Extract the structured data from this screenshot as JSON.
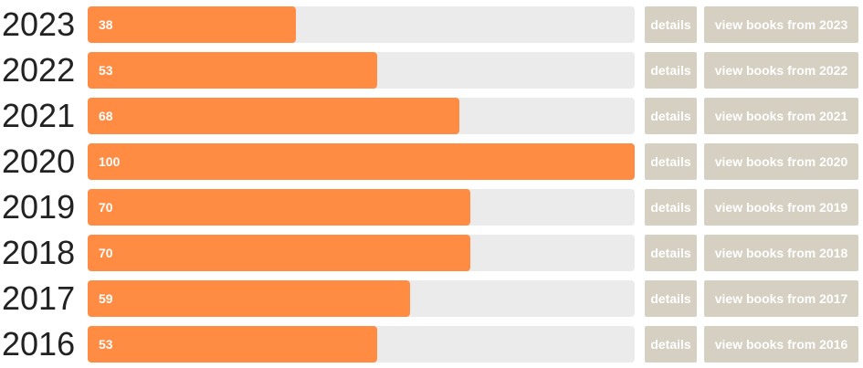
{
  "chart_data": {
    "type": "bar",
    "orientation": "horizontal",
    "categories": [
      "2023",
      "2022",
      "2021",
      "2020",
      "2019",
      "2018",
      "2017",
      "2016"
    ],
    "values": [
      38,
      53,
      68,
      100,
      70,
      70,
      59,
      53
    ],
    "xlim": [
      0,
      100
    ],
    "color": "#ff8c42",
    "details_labels": [
      "details",
      "details",
      "details",
      "details",
      "details",
      "details",
      "details",
      "details"
    ],
    "view_labels": [
      "view books from 2023",
      "view books from 2022",
      "view books from 2021",
      "view books from 2020",
      "view books from 2019",
      "view books from 2018",
      "view books from 2017",
      "view books from 2016"
    ]
  }
}
